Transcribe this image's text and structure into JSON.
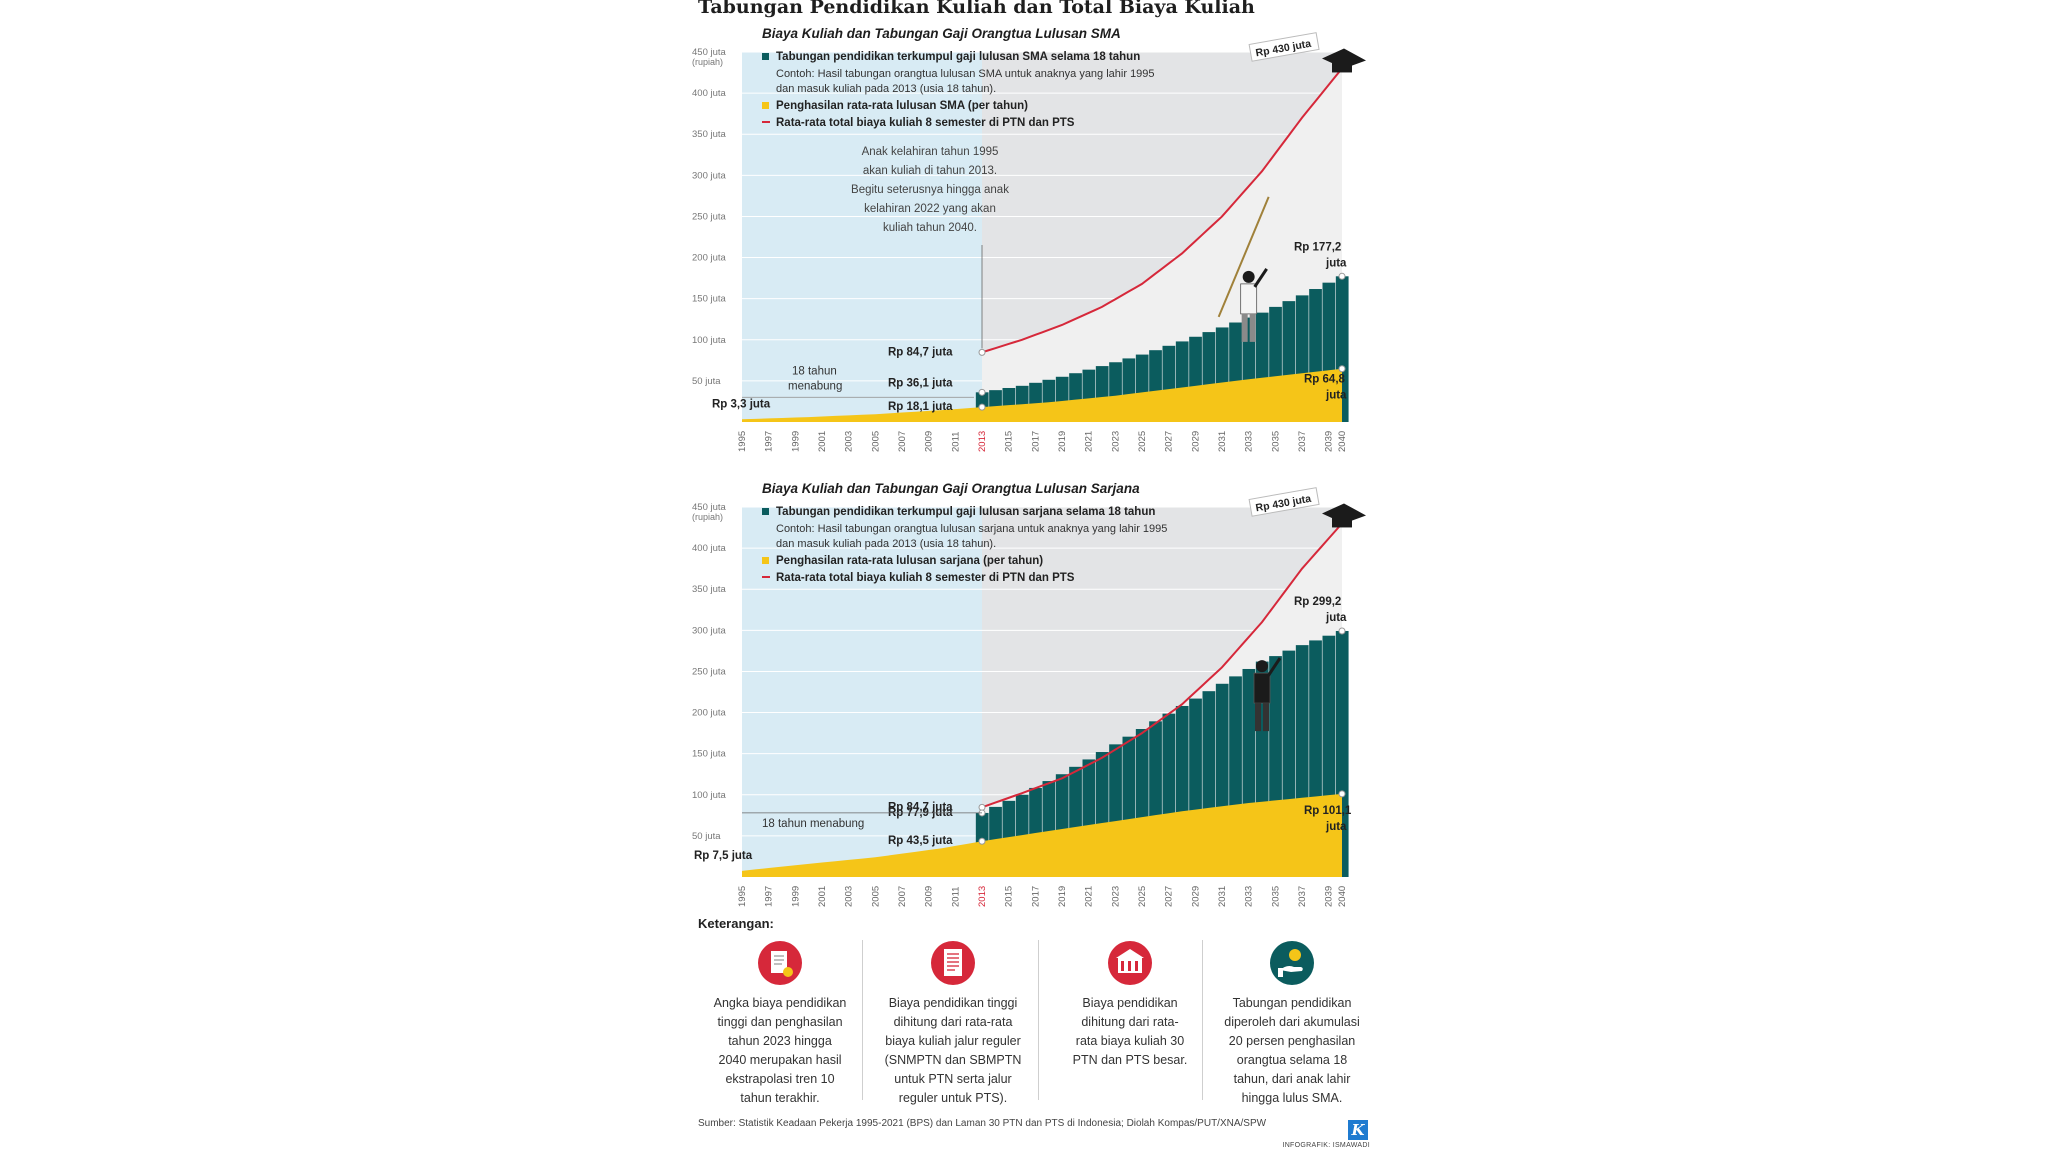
{
  "title": "Tabungan Pendidikan Kuliah dan Total Biaya Kuliah",
  "colors": {
    "savings": "#0b5c5e",
    "income": "#f5c518",
    "cost": "#d6283a",
    "bg_sky": "#d8ebf4",
    "bg_gray": "#e3e4e6"
  },
  "chart_data": [
    {
      "type": "area",
      "title": "Biaya Kuliah dan Tabungan Gaji Orangtua Lulusan SMA",
      "ylabel": "(rupiah)",
      "y_ticks": [
        "450 juta",
        "400 juta",
        "350 juta",
        "300 juta",
        "250 juta",
        "200 juta",
        "150 juta",
        "100 juta",
        "50 juta"
      ],
      "y_tick_values": [
        450,
        400,
        350,
        300,
        250,
        200,
        150,
        100,
        50
      ],
      "ylim": [
        0,
        450
      ],
      "x_ticks": [
        "1995",
        "1997",
        "1999",
        "2001",
        "2003",
        "2005",
        "2007",
        "2009",
        "2011",
        "2013",
        "2015",
        "2017",
        "2019",
        "2021",
        "2023",
        "2025",
        "2027",
        "2029",
        "2031",
        "2033",
        "2035",
        "2037",
        "2039",
        "2040"
      ],
      "highlight_tick": "2013",
      "legend": {
        "savings": "Tabungan pendidikan terkumpul gaji lulusan SMA selama 18 tahun",
        "example": [
          "Contoh: Hasil tabungan orangtua lulusan SMA untuk anaknya yang lahir 1995",
          "dan masuk kuliah pada 2013 (usia 18 tahun)."
        ],
        "income": "Penghasilan rata-rata lulusan SMA (per tahun)",
        "cost": "Rata-rata total biaya kuliah 8 semester di PTN dan PTS"
      },
      "series": [
        {
          "key": "income",
          "name": "Penghasilan rata-rata lulusan SMA (per tahun)",
          "x": [
            1995,
            2000,
            2005,
            2010,
            2013,
            2018,
            2023,
            2028,
            2033,
            2040
          ],
          "values": [
            3.3,
            6,
            9.5,
            14.5,
            18.1,
            24,
            32,
            42,
            52,
            64.8
          ]
        },
        {
          "key": "savings",
          "name": "Tabungan pendidikan terkumpul gaji lulusan SMA selama 18 tahun",
          "x": [
            2013,
            2016,
            2019,
            2022,
            2025,
            2028,
            2031,
            2034,
            2037,
            2040
          ],
          "values": [
            36.1,
            44,
            55,
            68,
            82,
            98,
            115,
            133,
            154,
            177.2
          ]
        },
        {
          "key": "cost",
          "name": "Rata-rata total biaya kuliah 8 semester di PTN dan PTS",
          "x": [
            2013,
            2016,
            2019,
            2022,
            2025,
            2028,
            2031,
            2034,
            2037,
            2040
          ],
          "values": [
            84.7,
            100,
            118,
            140,
            168,
            205,
            250,
            305,
            370,
            430
          ]
        }
      ],
      "labels": {
        "cost_max": "Rp 430 juta",
        "cost_start": "Rp 84,7 juta",
        "savings_start": "Rp 36,1 juta",
        "income_start": "Rp 18,1 juta",
        "income_first": "Rp 3,3 juta",
        "savings_end": [
          "Rp 177,2",
          "juta"
        ],
        "income_end": [
          "Rp 64,8",
          "juta"
        ],
        "saving_years": [
          "18 tahun",
          "menabung"
        ]
      },
      "annotation": [
        "Anak kelahiran tahun 1995",
        "akan kuliah di tahun 2013.",
        "Begitu seterusnya hingga anak",
        "kelahiran 2022 yang akan",
        "kuliah tahun 2040."
      ]
    },
    {
      "type": "area",
      "title": "Biaya Kuliah dan Tabungan Gaji Orangtua Lulusan Sarjana",
      "ylabel": "(rupiah)",
      "y_ticks": [
        "450 juta",
        "400 juta",
        "350 juta",
        "300 juta",
        "250 juta",
        "200 juta",
        "150 juta",
        "100 juta",
        "50 juta"
      ],
      "y_tick_values": [
        450,
        400,
        350,
        300,
        250,
        200,
        150,
        100,
        50
      ],
      "ylim": [
        0,
        450
      ],
      "x_ticks": [
        "1995",
        "1997",
        "1999",
        "2001",
        "2003",
        "2005",
        "2007",
        "2009",
        "2011",
        "2013",
        "2015",
        "2017",
        "2019",
        "2021",
        "2023",
        "2025",
        "2027",
        "2029",
        "2031",
        "2033",
        "2035",
        "2037",
        "2039",
        "2040"
      ],
      "highlight_tick": "2013",
      "legend": {
        "savings": "Tabungan pendidikan terkumpul gaji lulusan sarjana selama 18 tahun",
        "example": [
          "Contoh: Hasil tabungan orangtua lulusan sarjana untuk anaknya yang lahir 1995",
          "dan masuk kuliah pada 2013 (usia 18 tahun)."
        ],
        "income": "Penghasilan rata-rata lulusan sarjana (per tahun)",
        "cost": "Rata-rata total biaya kuliah 8 semester di PTN dan PTS"
      },
      "series": [
        {
          "key": "income",
          "name": "Penghasilan rata-rata lulusan sarjana (per tahun)",
          "x": [
            1995,
            2000,
            2005,
            2010,
            2013,
            2018,
            2023,
            2028,
            2033,
            2040
          ],
          "values": [
            7.5,
            16,
            24,
            35,
            43.5,
            56,
            68,
            80,
            90,
            101.1
          ]
        },
        {
          "key": "savings",
          "name": "Tabungan pendidikan terkumpul gaji lulusan sarjana selama 18 tahun",
          "x": [
            2013,
            2016,
            2019,
            2022,
            2025,
            2028,
            2031,
            2034,
            2037,
            2040
          ],
          "values": [
            77.9,
            100,
            125,
            152,
            180,
            208,
            235,
            262,
            282,
            299.2
          ]
        },
        {
          "key": "cost",
          "name": "Rata-rata total biaya kuliah 8 semester di PTN dan PTS",
          "x": [
            2013,
            2016,
            2019,
            2022,
            2025,
            2028,
            2031,
            2034,
            2037,
            2040
          ],
          "values": [
            84.7,
            102,
            120,
            145,
            175,
            210,
            255,
            310,
            375,
            430
          ]
        }
      ],
      "labels": {
        "cost_max": "Rp 430 juta",
        "cost_start": "Rp 84,7 juta",
        "savings_start": "Rp 77,9 juta",
        "income_start": "Rp 43,5 juta",
        "income_first": "Rp 7,5 juta",
        "savings_end": [
          "Rp 299,2",
          "juta"
        ],
        "income_end": [
          "Rp 101,1",
          "juta"
        ],
        "saving_years": [
          "18 tahun menabung"
        ]
      }
    }
  ],
  "keterangan": {
    "title": "Keterangan:",
    "notes": [
      {
        "icon": "document-icon",
        "lines": [
          "Angka biaya pendidikan",
          "tinggi dan penghasilan",
          "tahun 2023 hingga",
          "2040 merupakan hasil",
          "ekstrapolasi tren 10",
          "tahun terakhir."
        ]
      },
      {
        "icon": "receipt-icon",
        "lines": [
          "Biaya pendidikan tinggi",
          "dihitung dari rata-rata",
          "biaya kuliah jalur reguler",
          "(SNMPTN dan SBMPTN",
          "untuk PTN serta jalur",
          "reguler untuk PTS)."
        ]
      },
      {
        "icon": "campus-icon",
        "lines": [
          "Biaya pendidikan",
          "dihitung dari rata-",
          "rata biaya kuliah 30",
          "PTN dan PTS besar."
        ]
      },
      {
        "icon": "coin-hand-icon",
        "lines": [
          "Tabungan pendidikan",
          "diperoleh dari akumulasi",
          "20 persen penghasilan",
          "orangtua selama 18",
          "tahun, dari anak lahir",
          "hingga lulus SMA."
        ]
      }
    ]
  },
  "source": "Sumber: Statistik Keadaan Pekerja 1995-2021 (BPS) dan Laman 30 PTN dan PTS di Indonesia; Diolah Kompas/PUT/XNA/SPW",
  "credit": "INFOGRAFIK: ISMAWADI",
  "logo_letter": "K"
}
